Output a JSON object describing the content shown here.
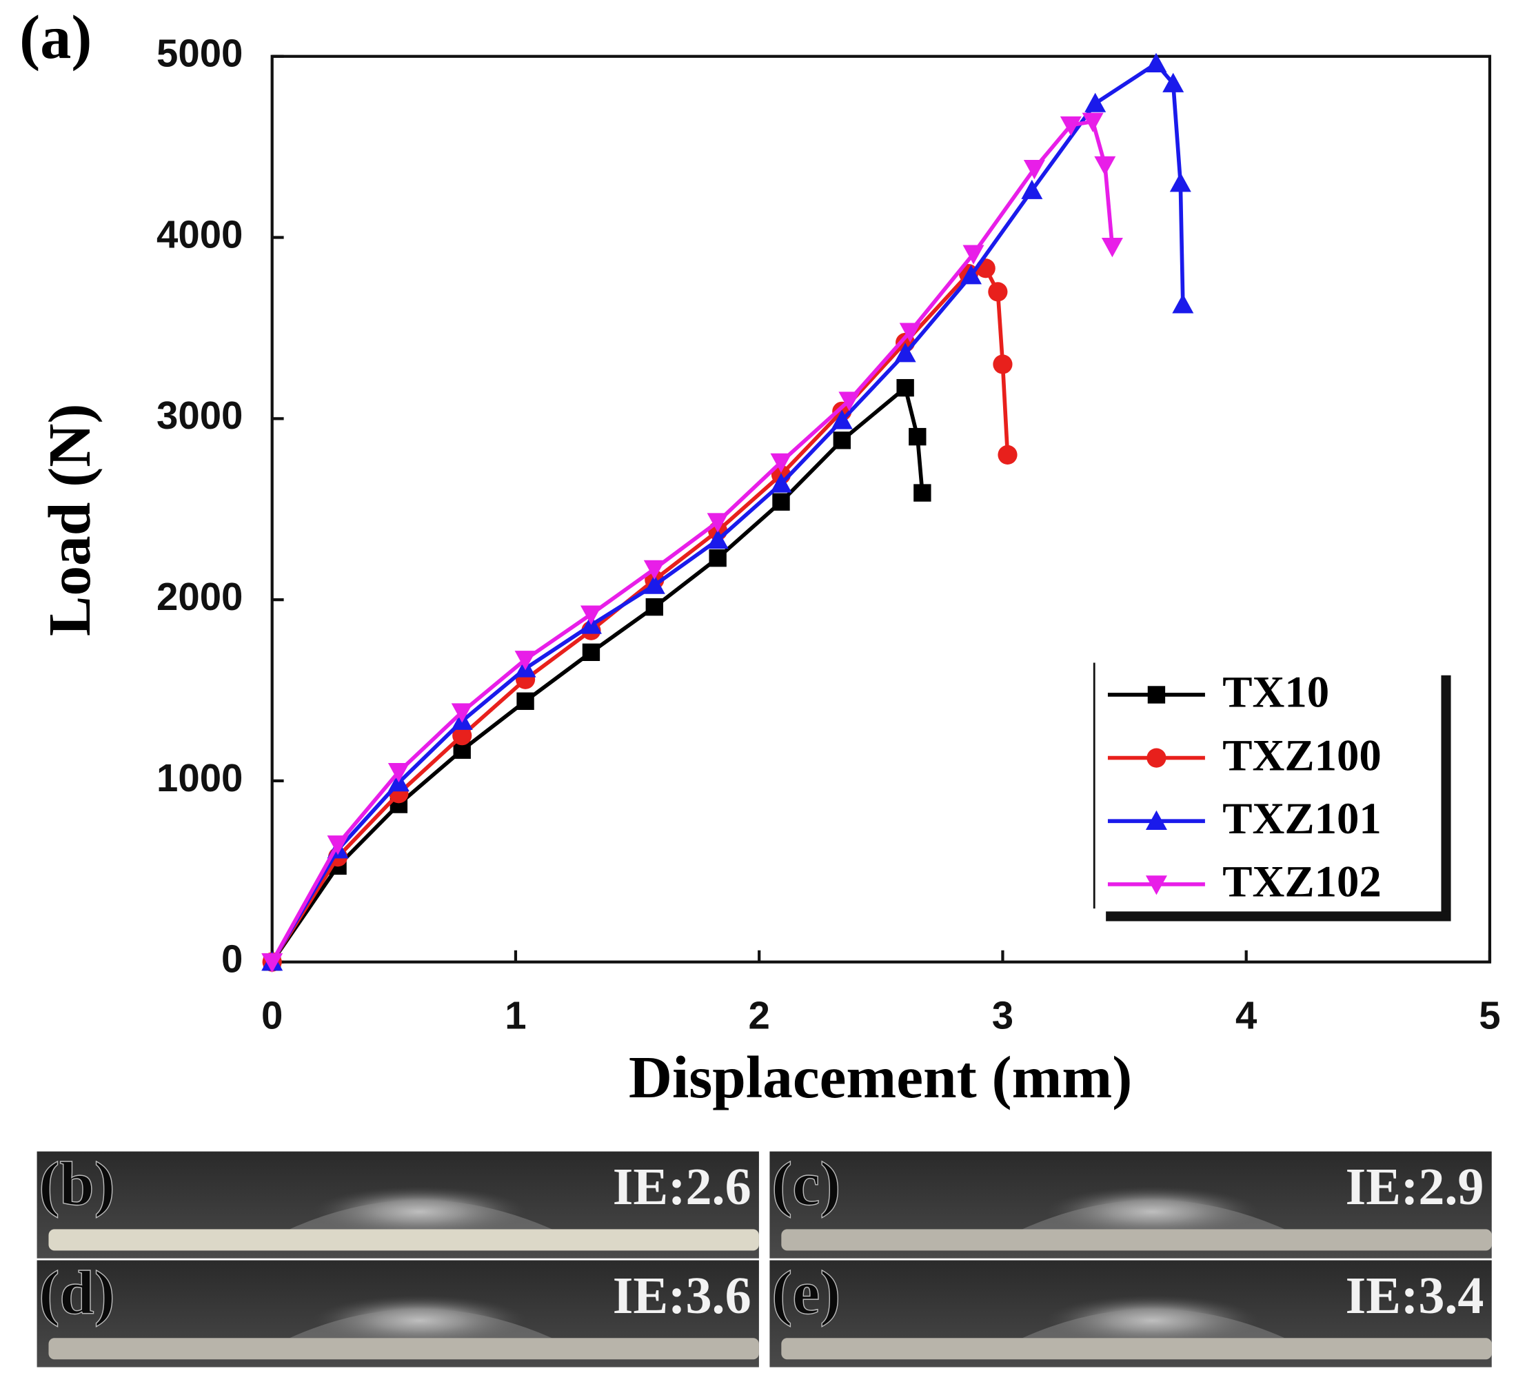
{
  "panel_label": "(a)",
  "chart_data": {
    "type": "line",
    "xlabel": "Displacement (mm)",
    "ylabel": "Load (N)",
    "xlim": [
      0,
      5
    ],
    "xticks": [
      0,
      1,
      2,
      3,
      4,
      5
    ],
    "ylim": [
      0,
      5000
    ],
    "yticks": [
      0,
      1000,
      2000,
      3000,
      4000,
      5000
    ],
    "legend": "lower right",
    "series": [
      {
        "name": "TX10",
        "color": "#000000",
        "marker": "square",
        "x": [
          0,
          0.27,
          0.52,
          0.78,
          1.04,
          1.31,
          1.57,
          1.83,
          2.09,
          2.34,
          2.6,
          2.65,
          2.67
        ],
        "values": [
          0,
          530,
          870,
          1170,
          1440,
          1710,
          1960,
          2230,
          2540,
          2880,
          3170,
          2900,
          2590
        ]
      },
      {
        "name": "TXZ100",
        "color": "#e8201c",
        "marker": "circle",
        "x": [
          0,
          0.27,
          0.52,
          0.78,
          1.04,
          1.31,
          1.57,
          1.83,
          2.09,
          2.34,
          2.6,
          2.86,
          2.93,
          2.98,
          3.0,
          3.02
        ],
        "values": [
          0,
          580,
          930,
          1250,
          1560,
          1830,
          2110,
          2380,
          2690,
          3040,
          3420,
          3800,
          3830,
          3700,
          3300,
          2800
        ]
      },
      {
        "name": "TXZ101",
        "color": "#1a1aeb",
        "marker": "triangle-up",
        "x": [
          0,
          0.27,
          0.52,
          0.78,
          1.04,
          1.31,
          1.57,
          1.83,
          2.09,
          2.34,
          2.6,
          2.87,
          3.12,
          3.38,
          3.63,
          3.7,
          3.73,
          3.74
        ],
        "values": [
          0,
          620,
          990,
          1330,
          1620,
          1860,
          2080,
          2330,
          2640,
          2990,
          3360,
          3790,
          4260,
          4740,
          4960,
          4850,
          4300,
          3630
        ]
      },
      {
        "name": "TXZ102",
        "color": "#e81ee8",
        "marker": "triangle-down",
        "x": [
          0,
          0.27,
          0.52,
          0.78,
          1.04,
          1.31,
          1.57,
          1.83,
          2.09,
          2.37,
          2.62,
          2.88,
          3.13,
          3.28,
          3.37,
          3.42,
          3.45
        ],
        "values": [
          0,
          650,
          1050,
          1380,
          1670,
          1920,
          2170,
          2430,
          2760,
          3100,
          3480,
          3910,
          4380,
          4620,
          4640,
          4400,
          3950
        ]
      }
    ]
  },
  "photos": [
    {
      "label": "(b)",
      "ie": "IE:2.6"
    },
    {
      "label": "(c)",
      "ie": "IE:2.9"
    },
    {
      "label": "(d)",
      "ie": "IE:3.6"
    },
    {
      "label": "(e)",
      "ie": "IE:3.4"
    }
  ]
}
